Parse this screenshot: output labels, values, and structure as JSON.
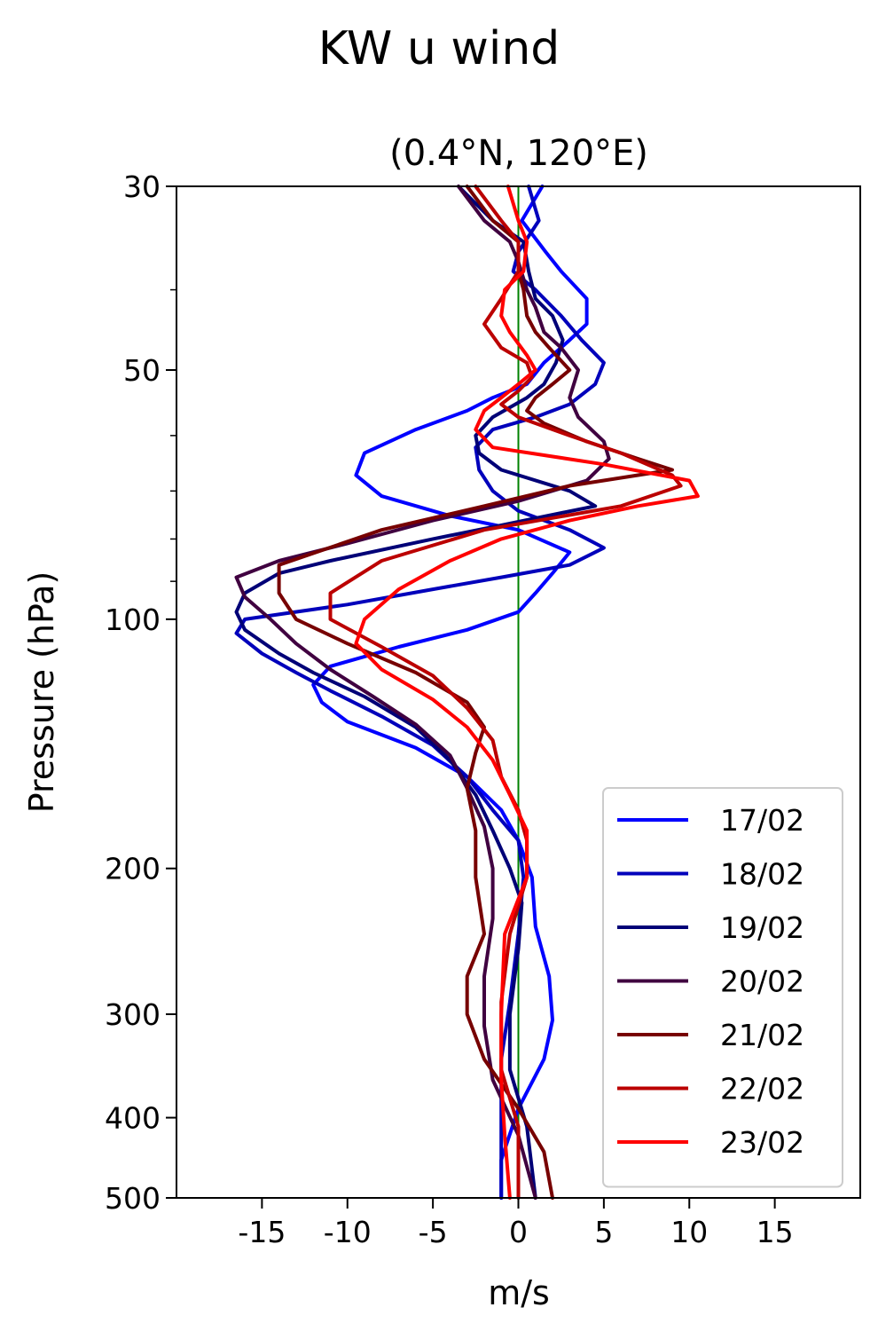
{
  "chart_data": {
    "type": "line",
    "title": "KW u wind",
    "subtitle": "(0.4°N, 120°E)",
    "xlabel": "m/s",
    "ylabel": "Pressure (hPa)",
    "xlim": [
      -20,
      20
    ],
    "ylim": [
      500,
      30
    ],
    "y_scale": "log",
    "x_ticks": [
      {
        "value": -15,
        "label": "-15"
      },
      {
        "value": -10,
        "label": "-10"
      },
      {
        "value": -5,
        "label": "-5"
      },
      {
        "value": 0,
        "label": "0"
      },
      {
        "value": 5,
        "label": "5"
      },
      {
        "value": 10,
        "label": "10"
      },
      {
        "value": 15,
        "label": "15"
      }
    ],
    "y_ticks": [
      {
        "value": 30,
        "label": "30"
      },
      {
        "value": 50,
        "label": "50"
      },
      {
        "value": 100,
        "label": "100"
      },
      {
        "value": 200,
        "label": "200"
      },
      {
        "value": 300,
        "label": "300"
      },
      {
        "value": 400,
        "label": "400"
      },
      {
        "value": 500,
        "label": "500"
      }
    ],
    "y_minor_ticks": [
      40,
      60,
      70,
      80,
      90
    ],
    "zero_line": {
      "x": 0,
      "color": "#008000"
    },
    "legend_position": "lower-right",
    "series": [
      {
        "name": "17/02",
        "color": "#0000ff",
        "points": [
          [
            1.4,
            30
          ],
          [
            0.2,
            33
          ],
          [
            1.6,
            36
          ],
          [
            2.5,
            38
          ],
          [
            4,
            41
          ],
          [
            4,
            44
          ],
          [
            3,
            46
          ],
          [
            1.5,
            49
          ],
          [
            0.5,
            52
          ],
          [
            -1.5,
            54
          ],
          [
            -3,
            56
          ],
          [
            -6,
            59
          ],
          [
            -9,
            63
          ],
          [
            -9.5,
            67
          ],
          [
            -8,
            71
          ],
          [
            -4,
            75
          ],
          [
            0,
            78
          ],
          [
            3,
            83
          ],
          [
            2,
            88
          ],
          [
            1,
            93
          ],
          [
            0,
            98
          ],
          [
            -3,
            103
          ],
          [
            -7,
            108
          ],
          [
            -11,
            114
          ],
          [
            -12,
            120
          ],
          [
            -11.5,
            126
          ],
          [
            -10,
            133
          ],
          [
            -6,
            143
          ],
          [
            -3,
            155
          ],
          [
            -1,
            170
          ],
          [
            0,
            185
          ],
          [
            0.8,
            205
          ],
          [
            1,
            235
          ],
          [
            1.8,
            270
          ],
          [
            2,
            305
          ],
          [
            1.5,
            340
          ],
          [
            0,
            390
          ],
          [
            -1,
            450
          ],
          [
            -1,
            500
          ]
        ]
      },
      {
        "name": "18/02",
        "color": "#0000bb",
        "points": [
          [
            0.6,
            30
          ],
          [
            1.2,
            33
          ],
          [
            0,
            36
          ],
          [
            -0.3,
            38
          ],
          [
            1,
            40
          ],
          [
            2.5,
            43
          ],
          [
            3.7,
            46
          ],
          [
            5,
            49
          ],
          [
            4.5,
            52
          ],
          [
            3,
            55
          ],
          [
            1,
            57
          ],
          [
            -1.5,
            59
          ],
          [
            -2.5,
            62
          ],
          [
            -2.3,
            66
          ],
          [
            -1.5,
            70
          ],
          [
            0,
            74
          ],
          [
            3,
            78
          ],
          [
            5,
            82
          ],
          [
            3,
            86
          ],
          [
            -1,
            89
          ],
          [
            -5,
            92
          ],
          [
            -10,
            96
          ],
          [
            -16,
            100
          ],
          [
            -16.5,
            104
          ],
          [
            -15,
            110
          ],
          [
            -13,
            116
          ],
          [
            -11,
            122
          ],
          [
            -8,
            131
          ],
          [
            -5,
            142
          ],
          [
            -3,
            155
          ],
          [
            -1.5,
            170
          ],
          [
            0,
            185
          ],
          [
            0.3,
            205
          ],
          [
            0,
            240
          ],
          [
            -0.5,
            290
          ],
          [
            -1,
            340
          ],
          [
            -1,
            400
          ],
          [
            -1,
            500
          ]
        ]
      },
      {
        "name": "19/02",
        "color": "#000077",
        "points": [
          [
            -3.5,
            30
          ],
          [
            -1.5,
            33
          ],
          [
            0.3,
            35
          ],
          [
            0.6,
            38
          ],
          [
            1,
            41
          ],
          [
            2,
            43
          ],
          [
            2.6,
            46
          ],
          [
            2.2,
            49
          ],
          [
            1.5,
            52
          ],
          [
            0.5,
            54
          ],
          [
            -1.5,
            57
          ],
          [
            -2.5,
            60
          ],
          [
            -2.3,
            63
          ],
          [
            -1,
            66
          ],
          [
            3,
            70
          ],
          [
            4.5,
            73
          ],
          [
            -1,
            77
          ],
          [
            -5,
            80
          ],
          [
            -11,
            85
          ],
          [
            -14,
            88
          ],
          [
            -16,
            93
          ],
          [
            -16.5,
            98
          ],
          [
            -16,
            103
          ],
          [
            -14,
            110
          ],
          [
            -12,
            116
          ],
          [
            -9,
            124
          ],
          [
            -6,
            135
          ],
          [
            -4,
            148
          ],
          [
            -2.5,
            163
          ],
          [
            -1.5,
            180
          ],
          [
            -0.5,
            200
          ],
          [
            0.2,
            220
          ],
          [
            0,
            250
          ],
          [
            -0.5,
            300
          ],
          [
            -0.5,
            350
          ],
          [
            0.5,
            410
          ],
          [
            1,
            500
          ]
        ]
      },
      {
        "name": "20/02",
        "color": "#400040",
        "points": [
          [
            -3.5,
            30
          ],
          [
            -2,
            33
          ],
          [
            -0.5,
            35
          ],
          [
            0,
            37
          ],
          [
            0.5,
            40
          ],
          [
            1,
            42
          ],
          [
            1.5,
            45
          ],
          [
            2.5,
            47
          ],
          [
            3.5,
            50
          ],
          [
            3,
            54
          ],
          [
            3.5,
            57
          ],
          [
            5,
            61
          ],
          [
            5.3,
            64
          ],
          [
            4,
            68
          ],
          [
            0,
            72
          ],
          [
            -5,
            76
          ],
          [
            -10,
            81
          ],
          [
            -14,
            85
          ],
          [
            -16.5,
            89
          ],
          [
            -16,
            94
          ],
          [
            -14.5,
            100
          ],
          [
            -13,
            107
          ],
          [
            -11,
            115
          ],
          [
            -8.5,
            124
          ],
          [
            -6,
            134
          ],
          [
            -4,
            146
          ],
          [
            -3,
            160
          ],
          [
            -2,
            178
          ],
          [
            -1.5,
            200
          ],
          [
            -1.5,
            230
          ],
          [
            -2,
            270
          ],
          [
            -2,
            310
          ],
          [
            -1.5,
            360
          ],
          [
            0,
            420
          ],
          [
            1,
            500
          ]
        ]
      },
      {
        "name": "21/02",
        "color": "#770000",
        "points": [
          [
            -3,
            30
          ],
          [
            -1.5,
            33
          ],
          [
            0,
            35
          ],
          [
            0,
            38
          ],
          [
            0.3,
            40
          ],
          [
            0.5,
            43
          ],
          [
            1,
            45
          ],
          [
            1.8,
            47
          ],
          [
            3,
            50
          ],
          [
            2,
            52
          ],
          [
            1,
            54
          ],
          [
            0.5,
            56
          ],
          [
            1.5,
            58
          ],
          [
            4,
            61
          ],
          [
            7,
            64
          ],
          [
            9,
            66
          ],
          [
            3,
            69
          ],
          [
            -2,
            73
          ],
          [
            -8,
            78
          ],
          [
            -14,
            86
          ],
          [
            -14,
            93
          ],
          [
            -13,
            100
          ],
          [
            -10,
            107
          ],
          [
            -6,
            116
          ],
          [
            -3,
            126
          ],
          [
            -2,
            135
          ],
          [
            -2.5,
            145
          ],
          [
            -3,
            160
          ],
          [
            -2.5,
            180
          ],
          [
            -2.5,
            205
          ],
          [
            -2,
            240
          ],
          [
            -3,
            270
          ],
          [
            -3,
            300
          ],
          [
            -2,
            340
          ],
          [
            0,
            390
          ],
          [
            1.5,
            440
          ],
          [
            2,
            500
          ]
        ]
      },
      {
        "name": "22/02",
        "color": "#bb0000",
        "points": [
          [
            -2.5,
            30
          ],
          [
            -1,
            33
          ],
          [
            0,
            35
          ],
          [
            0,
            38
          ],
          [
            -1,
            41
          ],
          [
            -2,
            44
          ],
          [
            -1,
            47
          ],
          [
            0.5,
            49
          ],
          [
            0.8,
            51
          ],
          [
            0,
            53
          ],
          [
            -1,
            55
          ],
          [
            0,
            57
          ],
          [
            3,
            60
          ],
          [
            6,
            63
          ],
          [
            9,
            67
          ],
          [
            9.5,
            69
          ],
          [
            6,
            73
          ],
          [
            -2,
            78
          ],
          [
            -8,
            85
          ],
          [
            -11,
            93
          ],
          [
            -11,
            100
          ],
          [
            -8,
            108
          ],
          [
            -5,
            117
          ],
          [
            -3,
            128
          ],
          [
            -1.5,
            140
          ],
          [
            -1,
            155
          ],
          [
            0,
            170
          ],
          [
            0.5,
            185
          ],
          [
            0.5,
            205
          ],
          [
            -0.5,
            240
          ],
          [
            -1,
            290
          ],
          [
            -1,
            350
          ],
          [
            0,
            410
          ],
          [
            0,
            500
          ]
        ]
      },
      {
        "name": "23/02",
        "color": "#ff0000",
        "points": [
          [
            -0.6,
            30
          ],
          [
            0,
            33
          ],
          [
            0.5,
            35
          ],
          [
            0.3,
            38
          ],
          [
            -0.8,
            40
          ],
          [
            -1,
            43
          ],
          [
            -0.5,
            45
          ],
          [
            0.5,
            48
          ],
          [
            1,
            50
          ],
          [
            0,
            52
          ],
          [
            -1,
            54
          ],
          [
            -2,
            56
          ],
          [
            -2.5,
            59
          ],
          [
            -1.5,
            62
          ],
          [
            5,
            65
          ],
          [
            10,
            68
          ],
          [
            10.5,
            71
          ],
          [
            7,
            73
          ],
          [
            3,
            76
          ],
          [
            -1,
            80
          ],
          [
            -4,
            85
          ],
          [
            -7,
            92
          ],
          [
            -9,
            100
          ],
          [
            -9.5,
            107
          ],
          [
            -8,
            115
          ],
          [
            -5,
            125
          ],
          [
            -3,
            135
          ],
          [
            -1.5,
            148
          ],
          [
            -0.5,
            163
          ],
          [
            0.5,
            180
          ],
          [
            0.5,
            205
          ],
          [
            -0.8,
            240
          ],
          [
            -1,
            300
          ],
          [
            -1,
            360
          ],
          [
            -0.8,
            420
          ],
          [
            -0.5,
            500
          ]
        ]
      }
    ]
  }
}
